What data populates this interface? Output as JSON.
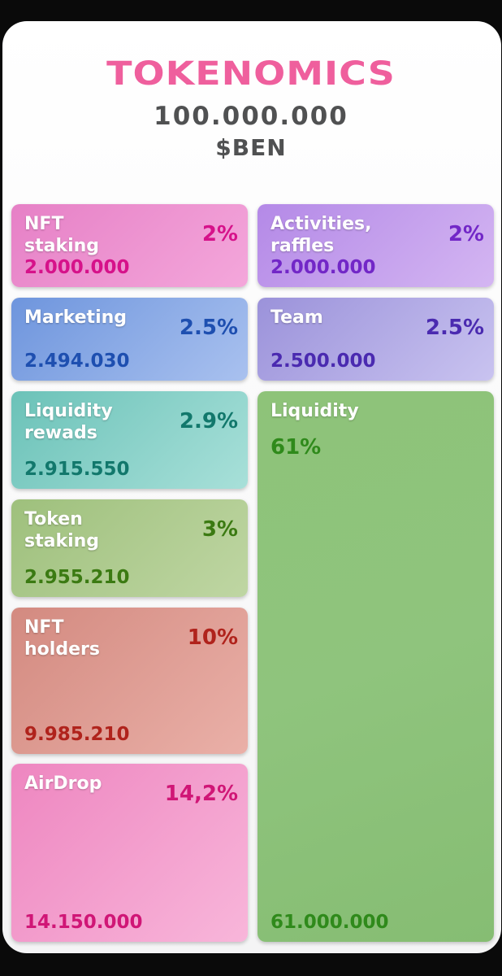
{
  "header": {
    "title": "TOKENOMICS",
    "total_supply": "100.000.000",
    "ticker": "$BEN"
  },
  "tiles": {
    "nft_staking": {
      "label": "NFT\nstaking",
      "percent": "2%",
      "amount": "2.000.000"
    },
    "activities": {
      "label": "Activities,\nraffles",
      "percent": "2%",
      "amount": "2.000.000"
    },
    "marketing": {
      "label": "Marketing",
      "percent": "2.5%",
      "amount": "2.494.030"
    },
    "team": {
      "label": "Team",
      "percent": "2.5%",
      "amount": "2.500.000"
    },
    "liquidity_rewards": {
      "label": "Liquidity\nrewads",
      "percent": "2.9%",
      "amount": "2.915.550"
    },
    "liquidity": {
      "label": "Liquidity",
      "percent": "61%",
      "amount": "61.000.000"
    },
    "token_staking": {
      "label": "Token\nstaking",
      "percent": "3%",
      "amount": "2.955.210"
    },
    "nft_holders": {
      "label": "NFT\nholders",
      "percent": "10%",
      "amount": "9.985.210"
    },
    "airdrop": {
      "label": "AirDrop",
      "percent": "14,2%",
      "amount": "14.150.000"
    }
  },
  "chart_data": {
    "type": "table",
    "title": "TOKENOMICS",
    "total": 100000000,
    "unit": "$BEN",
    "categories": [
      "NFT staking",
      "Activities, raffles",
      "Marketing",
      "Team",
      "Liquidity rewads",
      "Liquidity",
      "Token staking",
      "NFT holders",
      "AirDrop"
    ],
    "percent_values": [
      2,
      2,
      2.5,
      2.5,
      2.9,
      61,
      3,
      10,
      14.2
    ],
    "token_values": [
      2000000,
      2000000,
      2494030,
      2500000,
      2915550,
      61000000,
      2955210,
      9985210,
      14150000
    ],
    "colors": [
      "#e680c6",
      "#b489e7",
      "#6e95dd",
      "#9b92da",
      "#6bc2b8",
      "#8ec379",
      "#9ec07c",
      "#d38a80",
      "#ee86c0"
    ]
  }
}
